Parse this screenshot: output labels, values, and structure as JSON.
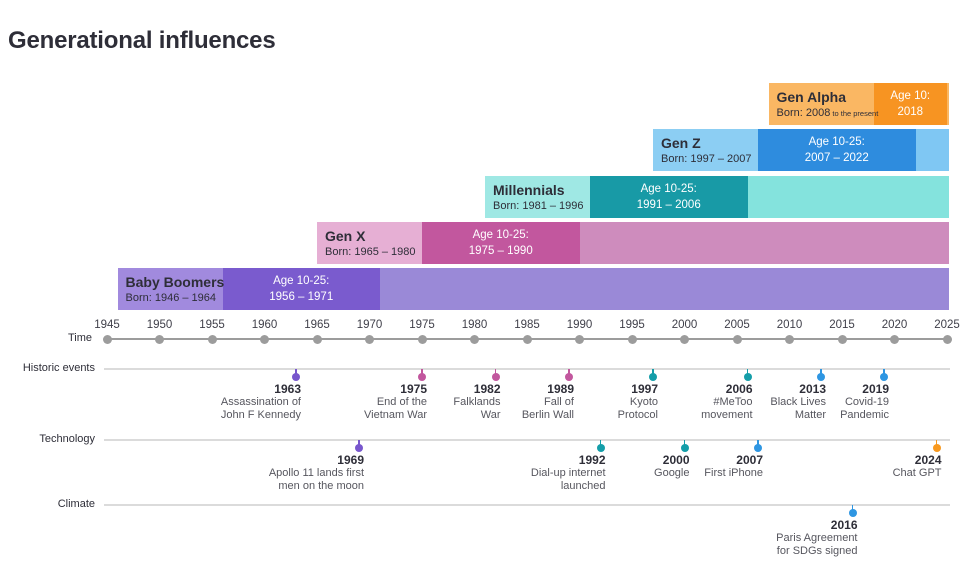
{
  "title": "Generational influences",
  "palette": {
    "purple": {
      "label_bg": "#A18ADE",
      "age_bg": "#7A5BCE",
      "tail_bg": "#9A89D7",
      "dot": "#7857CD"
    },
    "magenta": {
      "label_bg": "#E6AFD4",
      "age_bg": "#C2579E",
      "tail_bg": "#CE8CBD",
      "dot": "#C2579E"
    },
    "teal": {
      "label_bg": "#9FE8E4",
      "age_bg": "#189AA6",
      "tail_bg": "#84E3DD",
      "dot": "#149EA9"
    },
    "blue": {
      "label_bg": "#8CCEF3",
      "age_bg": "#2E8CDE",
      "tail_bg": "#7FC7F3",
      "dot": "#2E96E2"
    },
    "orange": {
      "label_bg": "#FAB763",
      "age_bg": "#F79422",
      "tail_bg": "#FAB763",
      "dot": "#F8991F"
    },
    "axis_gray": "#9C9C9C",
    "row_line_gray": "#DBDBDB",
    "text_dark": "#2E2E38",
    "text_muted": "#56565E"
  },
  "chart_data": {
    "type": "timeline",
    "time_axis": {
      "label": "Time",
      "start": 1945,
      "end": 2025,
      "step": 5,
      "ticks": [
        1945,
        1950,
        1955,
        1960,
        1965,
        1970,
        1975,
        1980,
        1985,
        1990,
        1995,
        2000,
        2005,
        2010,
        2015,
        2020,
        2025
      ]
    },
    "generations": [
      {
        "name": "Gen Alpha",
        "color": "orange",
        "born_label": "Born: 2008",
        "born_suffix": "to the present",
        "born_start": 2008,
        "born_end": 2025,
        "age_line1": "Age 10:",
        "age_line2": "2018",
        "age_start": 2018,
        "age_end": 2025,
        "bar_end": 2025
      },
      {
        "name": "Gen Z",
        "color": "blue",
        "born_label": "Born: 1997 – 2007",
        "born_suffix": "",
        "born_start": 1997,
        "born_end": 2007,
        "age_line1": "Age 10-25:",
        "age_line2": "2007 – 2022",
        "age_start": 2007,
        "age_end": 2022,
        "bar_end": 2025
      },
      {
        "name": "Millennials",
        "color": "teal",
        "born_label": "Born: 1981 – 1996",
        "born_suffix": "",
        "born_start": 1981,
        "born_end": 1996,
        "age_line1": "Age 10-25:",
        "age_line2": "1991 – 2006",
        "age_start": 1991,
        "age_end": 2006,
        "bar_end": 2025
      },
      {
        "name": "Gen X",
        "color": "magenta",
        "born_label": "Born: 1965 – 1980",
        "born_suffix": "",
        "born_start": 1965,
        "born_end": 1980,
        "age_line1": "Age 10-25:",
        "age_line2": "1975 – 1990",
        "age_start": 1975,
        "age_end": 1990,
        "bar_end": 2025
      },
      {
        "name": "Baby Boomers",
        "color": "purple",
        "born_label": "Born: 1946 – 1964",
        "born_suffix": "",
        "born_start": 1946,
        "born_end": 1964,
        "age_line1": "Age 10-25:",
        "age_line2": "1956 – 1971",
        "age_start": 1956,
        "age_end": 1971,
        "bar_end": 2025
      }
    ],
    "event_rows": [
      {
        "label": "Historic events",
        "events": [
          {
            "year": 1963,
            "lines": [
              "Assassination of",
              "John F Kennedy"
            ],
            "color": "purple"
          },
          {
            "year": 1975,
            "lines": [
              "End of the",
              "Vietnam War"
            ],
            "color": "magenta"
          },
          {
            "year": 1982,
            "lines": [
              "Falklands",
              "War"
            ],
            "color": "magenta"
          },
          {
            "year": 1989,
            "lines": [
              "Fall of",
              "Berlin Wall"
            ],
            "color": "magenta"
          },
          {
            "year": 1997,
            "lines": [
              "Kyoto",
              "Protocol"
            ],
            "color": "teal"
          },
          {
            "year": 2006,
            "lines": [
              "#MeToo",
              "movement"
            ],
            "color": "teal"
          },
          {
            "year": 2013,
            "lines": [
              "Black Lives",
              "Matter"
            ],
            "color": "blue"
          },
          {
            "year": 2019,
            "lines": [
              "Covid-19",
              "Pandemic"
            ],
            "color": "blue"
          }
        ]
      },
      {
        "label": "Technology",
        "events": [
          {
            "year": 1969,
            "lines": [
              "Apollo 11 lands first",
              "men on the moon"
            ],
            "color": "purple"
          },
          {
            "year": 1992,
            "lines": [
              "Dial-up internet",
              "launched"
            ],
            "color": "teal"
          },
          {
            "year": 2000,
            "lines": [
              "Google"
            ],
            "color": "teal"
          },
          {
            "year": 2007,
            "lines": [
              "First iPhone"
            ],
            "color": "blue"
          },
          {
            "year": 2024,
            "lines": [
              "Chat GPT"
            ],
            "color": "orange"
          }
        ]
      },
      {
        "label": "Climate",
        "events": [
          {
            "year": 2016,
            "lines": [
              "Paris Agreement",
              "for SDGs signed"
            ],
            "color": "blue"
          }
        ]
      }
    ]
  }
}
